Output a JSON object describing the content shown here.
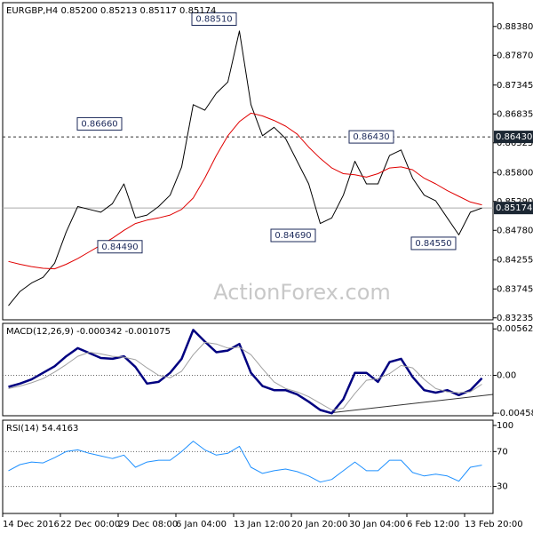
{
  "chart_data": [
    {
      "type": "line",
      "title": "EURGBP,H4  0.85200 0.85213 0.85117 0.85174",
      "watermark": "ActionForex.com",
      "ylim": [
        0.832,
        0.888
      ],
      "yticks": [
        {
          "value": 0.8838,
          "label": "0.88380"
        },
        {
          "value": 0.8787,
          "label": "0.87870"
        },
        {
          "value": 0.87345,
          "label": "0.87345"
        },
        {
          "value": 0.86835,
          "label": "0.86835"
        },
        {
          "value": 0.86325,
          "label": "0.86325"
        },
        {
          "value": 0.858,
          "label": "0.85800"
        },
        {
          "value": 0.8529,
          "label": "0.85290"
        },
        {
          "value": 0.8478,
          "label": "0.84780"
        },
        {
          "value": 0.84255,
          "label": "0.84255"
        },
        {
          "value": 0.83745,
          "label": "0.83745"
        },
        {
          "value": 0.83235,
          "label": "0.83235"
        }
      ],
      "level": {
        "value": 0.8643,
        "label": "0.86430"
      },
      "last": {
        "value": 0.85174,
        "label": "0.85174"
      },
      "annotations": [
        {
          "value": 0.8851,
          "label": "0.88510"
        },
        {
          "value": 0.8666,
          "label": "0.86660"
        },
        {
          "value": 0.8449,
          "label": "0.84490"
        },
        {
          "value": 0.8469,
          "label": "0.84690"
        },
        {
          "value": 0.8643,
          "label": "0.86430"
        },
        {
          "value": 0.8455,
          "label": "0.84550"
        }
      ],
      "series": [
        {
          "color": "#000000",
          "width": 1,
          "values": [
            0.8345,
            0.837,
            0.8385,
            0.8395,
            0.842,
            0.8475,
            0.852,
            0.8515,
            0.851,
            0.8525,
            0.856,
            0.85,
            0.8505,
            0.852,
            0.854,
            0.859,
            0.87,
            0.869,
            0.872,
            0.874,
            0.883,
            0.87,
            0.8645,
            0.866,
            0.864,
            0.86,
            0.856,
            0.849,
            0.85,
            0.854,
            0.86,
            0.856,
            0.856,
            0.861,
            0.862,
            0.857,
            0.854,
            0.853,
            0.85,
            0.847,
            0.851,
            0.85174
          ]
        },
        {
          "color": "#e00000",
          "width": 1,
          "values": [
            0.8423,
            0.8418,
            0.8414,
            0.8411,
            0.841,
            0.8418,
            0.8428,
            0.844,
            0.8452,
            0.8464,
            0.8478,
            0.849,
            0.8496,
            0.85,
            0.8505,
            0.8515,
            0.8535,
            0.857,
            0.861,
            0.8645,
            0.867,
            0.8685,
            0.868,
            0.8672,
            0.8662,
            0.8648,
            0.8625,
            0.8605,
            0.8588,
            0.8578,
            0.8576,
            0.8572,
            0.8578,
            0.8588,
            0.859,
            0.8585,
            0.857,
            0.856,
            0.8548,
            0.8538,
            0.8528,
            0.8523
          ]
        }
      ]
    },
    {
      "type": "line",
      "title": "MACD(12,26,9) -0.000342 -0.001075",
      "ylim": [
        -0.0049,
        0.0063
      ],
      "yticks": [
        0.005627,
        {
          "value": 0,
          "label": "0.00"
        },
        -0.004586
      ],
      "levels": [
        0
      ],
      "series": [
        {
          "color": "#000080",
          "width": 2.5,
          "values": [
            -0.0014,
            -0.001,
            -0.0005,
            0.0003,
            0.0011,
            0.0023,
            0.0033,
            0.0027,
            0.0021,
            0.002,
            0.0023,
            0.001,
            -0.001,
            -0.0008,
            0.0003,
            0.002,
            0.0055,
            0.0041,
            0.0028,
            0.003,
            0.0038,
            0.0003,
            -0.0013,
            -0.0018,
            -0.0018,
            -0.0023,
            -0.0032,
            -0.0042,
            -0.0046,
            -0.0029,
            0.0003,
            0.0003,
            -0.0008,
            0.0016,
            0.002,
            -0.0002,
            -0.0018,
            -0.0021,
            -0.0018,
            -0.0024,
            -0.0018,
            -0.000342
          ]
        },
        {
          "color": "#a0a0a0",
          "width": 1,
          "values": [
            -0.0016,
            -0.0013,
            -0.0009,
            -0.0004,
            0.0004,
            0.0013,
            0.0023,
            0.0028,
            0.0026,
            0.0023,
            0.0022,
            0.0019,
            0.0009,
            0.0,
            -0.0003,
            0.0005,
            0.0025,
            0.004,
            0.0038,
            0.0033,
            0.0034,
            0.0025,
            0.0008,
            -0.0008,
            -0.0016,
            -0.002,
            -0.0026,
            -0.0034,
            -0.0042,
            -0.004,
            -0.0022,
            -0.0006,
            -0.0004,
            0.0002,
            0.0012,
            0.0009,
            -0.0005,
            -0.0016,
            -0.002,
            -0.0021,
            -0.002,
            -0.001075
          ]
        }
      ]
    },
    {
      "type": "line",
      "title": "RSI(14) 54.4163",
      "ylim": [
        -1,
        106
      ],
      "yticks": [
        100,
        70,
        30
      ],
      "levels": [
        70,
        30
      ],
      "categories": [
        "14 Dec 2016",
        null,
        null,
        null,
        null,
        "22 Dec 00:00",
        null,
        null,
        null,
        null,
        "29 Dec 08:00",
        null,
        null,
        null,
        null,
        "6 Jan 04:00",
        null,
        null,
        null,
        null,
        "13 Jan 12:00",
        null,
        null,
        null,
        null,
        "20 Jan 20:00",
        null,
        null,
        null,
        null,
        "30 Jan 04:00",
        null,
        null,
        null,
        null,
        "6 Feb 12:00",
        null,
        null,
        null,
        null,
        "13 Feb 20:00",
        null
      ],
      "series": [
        {
          "color": "#1e90ff",
          "width": 1,
          "values": [
            48,
            55,
            58,
            57,
            63,
            70,
            72,
            68,
            65,
            62,
            66,
            52,
            58,
            60,
            60,
            70,
            82,
            72,
            66,
            68,
            76,
            52,
            45,
            48,
            50,
            47,
            42,
            35,
            38,
            48,
            58,
            48,
            48,
            60,
            60,
            46,
            42,
            44,
            42,
            36,
            52,
            54.4163
          ]
        }
      ]
    }
  ]
}
